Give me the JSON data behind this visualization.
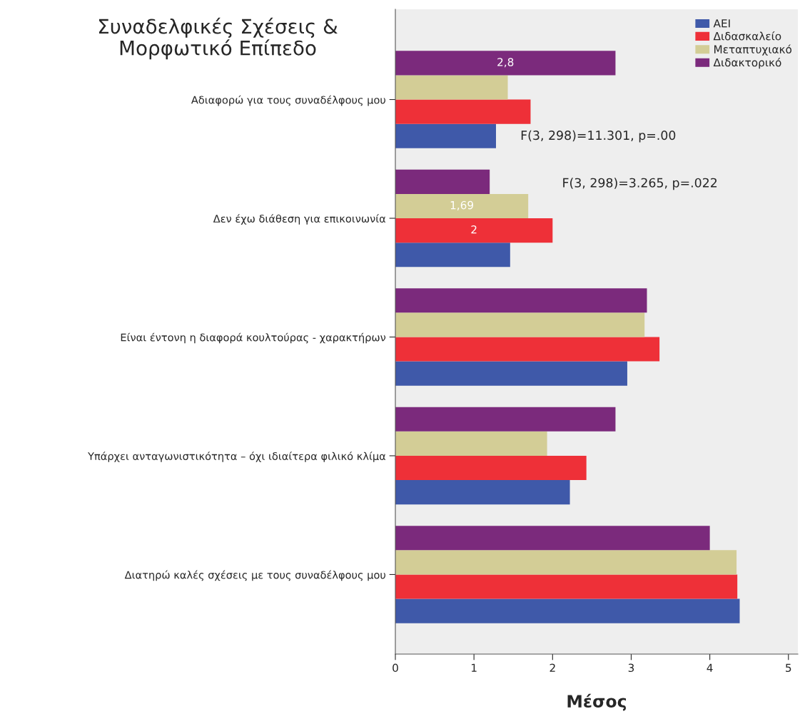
{
  "chart_data": {
    "type": "bar",
    "orientation": "horizontal",
    "title": "Συναδελφικές Σχέσεις &\nΜορφωτικό Επίπεδο",
    "xlabel": "Μέσος",
    "categories": [
      "Αδιαφορώ για τους συναδέλφους μου",
      "Δεν έχω διάθεση για επικοινωνία",
      "Είναι έντονη η διαφορά κουλτούρας - χαρακτήρων",
      "Υπάρχει ανταγωνιστικότητα – όχι ιδιαίτερα φιλικό κλίμα",
      "Διατηρώ καλές σχέσεις με τους συναδέλφους μου"
    ],
    "series": [
      {
        "name": "ΑΕΙ",
        "color": "#3f59a9",
        "values": [
          1.28,
          1.46,
          2.95,
          2.22,
          4.38
        ]
      },
      {
        "name": "Διδασκαλείο",
        "color": "#ee3038",
        "values": [
          1.72,
          2.0,
          3.36,
          2.43,
          4.35
        ],
        "value_labels": [
          null,
          "2",
          null,
          null,
          null
        ]
      },
      {
        "name": "Μεταπτυχιακό",
        "color": "#d3cd96",
        "values": [
          1.43,
          1.69,
          3.17,
          1.93,
          4.34
        ],
        "value_labels": [
          null,
          "1,69",
          null,
          null,
          null
        ]
      },
      {
        "name": "Διδακτορικό",
        "color": "#7b2a7c",
        "values": [
          2.8,
          1.2,
          3.2,
          2.8,
          4.0
        ],
        "value_labels": [
          "2,8",
          null,
          null,
          null,
          null
        ]
      }
    ],
    "xlim": [
      0,
      5.12
    ],
    "xticks": [
      0,
      1,
      2,
      3,
      4,
      5
    ],
    "grid": false,
    "legend": "top right",
    "annotations": [
      "F(3, 298)=11.301, p=.00",
      "F(3, 298)=3.265, p=.022"
    ]
  }
}
